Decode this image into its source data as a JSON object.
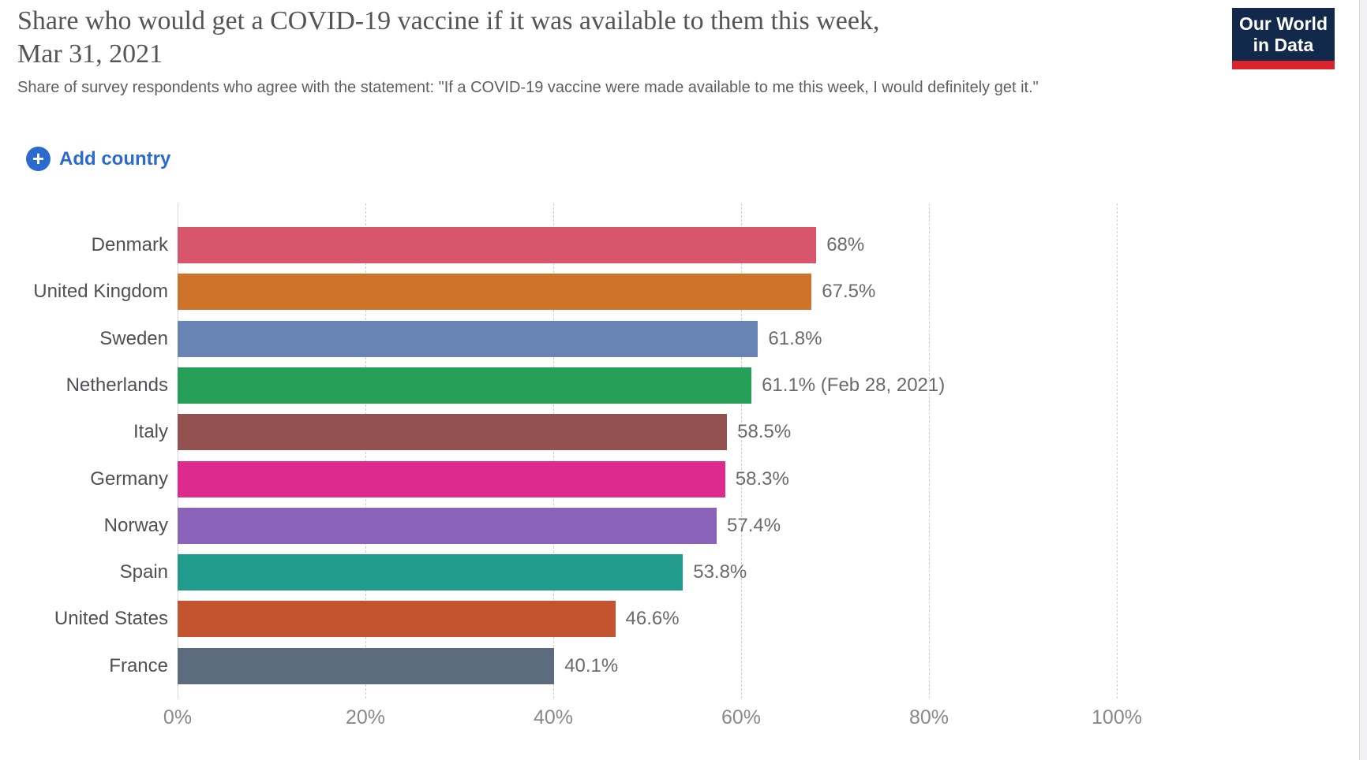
{
  "header": {
    "title_line1": "Share who would get a COVID-19 vaccine if it was available to them this week,",
    "title_line2": "Mar 31, 2021",
    "subtitle": "Share of survey respondents who agree with the statement: \"If a COVID-19 vaccine were made available to me this week, I would definitely get it.\"",
    "logo": {
      "line1": "Our World",
      "line2": "in Data",
      "bg_color": "#12294b",
      "accent_color": "#d8252b"
    }
  },
  "controls": {
    "add_country_label": "Add country",
    "plus_icon": "+",
    "accent_color": "#2b6bce"
  },
  "chart_data": {
    "type": "bar",
    "orientation": "horizontal",
    "title": "Share who would get a COVID-19 vaccine if it was available to them this week, Mar 31, 2021",
    "categories": [
      "Denmark",
      "United Kingdom",
      "Sweden",
      "Netherlands",
      "Italy",
      "Germany",
      "Norway",
      "Spain",
      "United States",
      "France"
    ],
    "values": [
      68,
      67.5,
      61.8,
      61.1,
      58.5,
      58.3,
      57.4,
      53.8,
      46.6,
      40.1
    ],
    "value_labels": [
      "68%",
      "67.5%",
      "61.8%",
      "61.1% (Feb 28, 2021)",
      "58.5%",
      "58.3%",
      "57.4%",
      "53.8%",
      "46.6%",
      "40.1%"
    ],
    "bar_colors": [
      "#d8566b",
      "#ce7329",
      "#6784b4",
      "#259e58",
      "#935150",
      "#dc2a8d",
      "#8a62b9",
      "#219c8c",
      "#c4532f",
      "#5d6b7e"
    ],
    "x_ticks": [
      "0%",
      "20%",
      "40%",
      "60%",
      "80%",
      "100%"
    ],
    "x_tick_values": [
      0,
      20,
      40,
      60,
      80,
      100
    ],
    "xlim": [
      0,
      100
    ],
    "xlabel": "",
    "ylabel": "",
    "grid": "vertical-dashed",
    "legend": "none"
  }
}
